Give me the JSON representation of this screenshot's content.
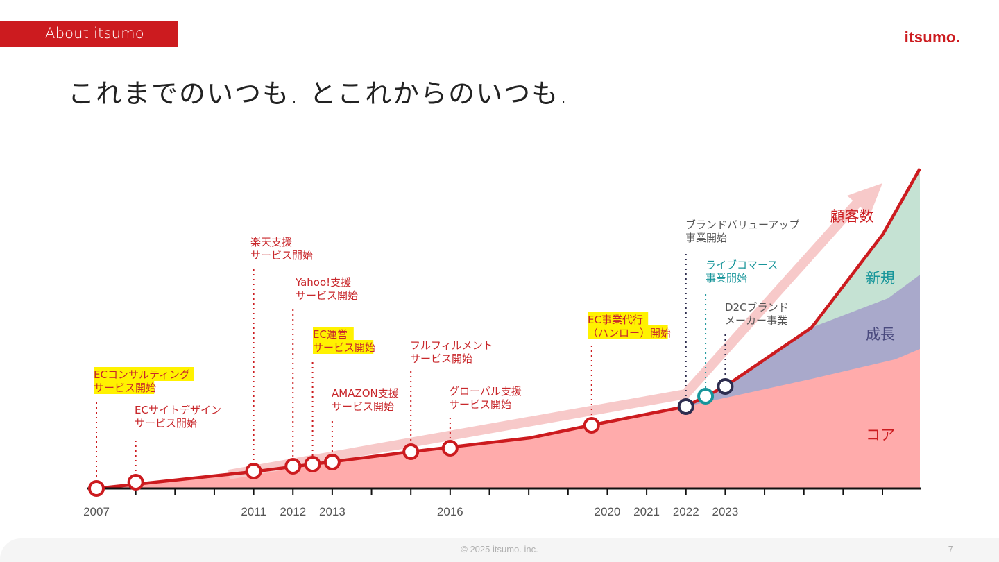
{
  "header": {
    "section_tag": "About itsumo",
    "logo": "itsumo.",
    "title": "これまでのいつも. とこれからのいつも."
  },
  "colors": {
    "brand_red": "#cc1b1f",
    "core_fill": "#ffabab",
    "growth_fill": "#a9a9cb",
    "new_fill": "#c5e2d3",
    "arrow": "#f7c9c9",
    "highlight": "#fff200",
    "navy": "#2d2d4f",
    "teal": "#17959a"
  },
  "chart_data": {
    "type": "line",
    "x_tick_labels": [
      "2007",
      "2011",
      "2012",
      "2013",
      "2016",
      "2020",
      "2021",
      "2022",
      "2023"
    ],
    "area_labels": {
      "core": "コア",
      "growth": "成長",
      "new": "新規"
    },
    "arrow_label": "顧客数",
    "milestones": [
      {
        "year": 2007.0,
        "text": [
          "ECコンサルティング",
          "サービス開始"
        ],
        "highlight": true,
        "color": "red"
      },
      {
        "year": 2008.0,
        "text": [
          "ECサイトデザイン",
          "サービス開始"
        ],
        "highlight": false,
        "color": "red"
      },
      {
        "year": 2011.0,
        "text": [
          "楽天支援",
          "サービス開始"
        ],
        "highlight": false,
        "color": "red"
      },
      {
        "year": 2012.0,
        "text": [
          "Yahoo!支援",
          "サービス開始"
        ],
        "highlight": false,
        "color": "red"
      },
      {
        "year": 2012.5,
        "text": [
          "EC運営",
          "サービス開始"
        ],
        "highlight": true,
        "color": "red"
      },
      {
        "year": 2013.0,
        "text": [
          "AMAZON支援",
          "サービス開始"
        ],
        "highlight": false,
        "color": "red"
      },
      {
        "year": 2015.0,
        "text": [
          "フルフィルメント",
          "サービス開始"
        ],
        "highlight": false,
        "color": "red"
      },
      {
        "year": 2016.0,
        "text": [
          "グローバル支援",
          "サービス開始"
        ],
        "highlight": false,
        "color": "red"
      },
      {
        "year": 2019.6,
        "text": [
          "EC事業代行",
          "（ハンロー）開始"
        ],
        "highlight": true,
        "color": "red"
      },
      {
        "year": 2022.0,
        "text": [
          "ブランドバリューアップ",
          "事業開始"
        ],
        "highlight": false,
        "color": "navy"
      },
      {
        "year": 2022.5,
        "text": [
          "ライブコマース",
          "事業開始"
        ],
        "highlight": false,
        "color": "teal"
      },
      {
        "year": 2023.0,
        "text": [
          "D2Cブランド",
          "メーカー事業"
        ],
        "highlight": false,
        "color": "navy"
      }
    ]
  },
  "footer": {
    "copyright": "© 2025 itsumo. inc.",
    "page_number": "7"
  }
}
